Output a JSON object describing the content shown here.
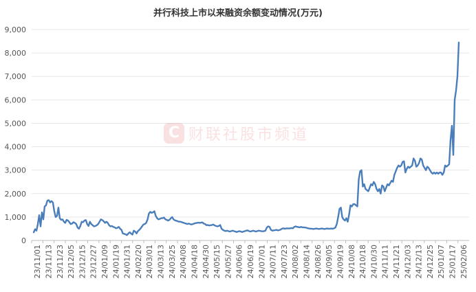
{
  "chart_data": {
    "type": "line",
    "title": "并行科技上市以来融资余额变动情况(万元)",
    "xlabel": "",
    "ylabel": "",
    "ylim": [
      0,
      9000
    ],
    "yticks": [
      "0",
      "1,000",
      "2,000",
      "3,000",
      "4,000",
      "5,000",
      "6,000",
      "7,000",
      "8,000",
      "9,000"
    ],
    "xticks": [
      "23/11/01",
      "23/11/13",
      "23/11/23",
      "23/12/05",
      "23/12/15",
      "23/12/27",
      "24/01/09",
      "24/01/19",
      "24/01/31",
      "24/02/20",
      "24/03/01",
      "24/03/13",
      "24/03/25",
      "24/04/08",
      "24/04/18",
      "24/04/30",
      "24/05/15",
      "24/05/27",
      "24/06/06",
      "24/06/19",
      "24/07/01",
      "24/07/11",
      "24/07/23",
      "24/08/02",
      "24/08/14",
      "24/08/26",
      "24/09/05",
      "24/09/19",
      "24/10/08",
      "24/10/18",
      "24/10/30",
      "24/11/11",
      "24/11/21",
      "24/12/03",
      "24/12/13",
      "24/12/25",
      "25/01/07",
      "25/01/17",
      "25/02/06"
    ],
    "grid": true,
    "legend": "none",
    "color": "#4a7ebb",
    "series": [
      {
        "values": [
          350,
          480,
          420,
          700,
          1080,
          600,
          1200,
          900,
          1450,
          1500,
          1700,
          1720,
          1620,
          1680,
          1620,
          1250,
          1000,
          1050,
          1400,
          950,
          880,
          900,
          800,
          750,
          880,
          850,
          780,
          700,
          720,
          780,
          750,
          700,
          550,
          500,
          620,
          800,
          780,
          850,
          870,
          700,
          620,
          800,
          700,
          650,
          600,
          620,
          650,
          700,
          800,
          900,
          870,
          820,
          750,
          800,
          750,
          650,
          600,
          620,
          580,
          560,
          520,
          540,
          580,
          500,
          450,
          300,
          280,
          260,
          230,
          300,
          350,
          300,
          250,
          420,
          380,
          300,
          400,
          450,
          520,
          600,
          680,
          700,
          750,
          900,
          1150,
          1220,
          1180,
          1200,
          1250,
          1050,
          950,
          900,
          920,
          950,
          950,
          980,
          900,
          880,
          850,
          880,
          950,
          1000,
          900,
          860,
          840,
          820,
          800,
          800,
          780,
          760,
          740,
          720,
          700,
          720,
          700,
          680,
          700,
          720,
          740,
          750,
          760,
          750,
          760,
          770,
          720,
          700,
          650,
          660,
          640,
          650,
          660,
          680,
          640,
          620,
          600,
          620,
          660,
          500,
          450,
          420,
          400,
          420,
          400,
          380,
          400,
          420,
          400,
          380,
          360,
          380,
          400,
          380,
          360,
          380,
          400,
          420,
          430,
          400,
          380,
          400,
          420,
          400,
          380,
          400,
          420,
          410,
          400,
          390,
          400,
          420,
          550,
          600,
          580,
          450,
          420,
          430,
          440,
          450,
          430,
          440,
          460,
          500,
          520,
          500,
          510,
          520,
          510,
          520,
          530,
          520,
          580,
          600,
          580,
          570,
          560,
          580,
          560,
          560,
          550,
          540,
          520,
          510,
          500,
          500,
          490,
          500,
          510,
          500,
          490,
          500,
          510,
          500,
          490,
          500,
          510,
          500,
          500,
          510,
          500,
          520,
          550,
          700,
          1000,
          1350,
          1400,
          1000,
          900,
          850,
          950,
          800,
          1100,
          1500,
          1450,
          1550,
          1550,
          1500,
          1450,
          2600,
          2950,
          3000,
          2300,
          2400,
          2200,
          2150,
          2100,
          2250,
          2400,
          2350,
          2500,
          2400,
          2200,
          2100,
          2200,
          2000,
          2350,
          2300,
          2100,
          2250,
          2400,
          2350,
          2450,
          2550,
          2500,
          2800,
          2950,
          3100,
          3200,
          3150,
          3200,
          3350,
          3380,
          2900,
          3050,
          3150,
          3100,
          3150,
          3200,
          3500,
          3400,
          3150,
          3200,
          3300,
          3500,
          3450,
          3200,
          3100,
          3000,
          3150,
          3100,
          3000,
          2900,
          2850,
          2900,
          2850,
          2900,
          2850,
          2900,
          2900,
          2800,
          2900,
          3200,
          3150,
          3200,
          3250,
          4300,
          4900,
          3650,
          6000,
          6400,
          7000,
          8450
        ]
      }
    ]
  },
  "watermark": {
    "logo_letter": "C",
    "text": "财联社股市频道"
  }
}
